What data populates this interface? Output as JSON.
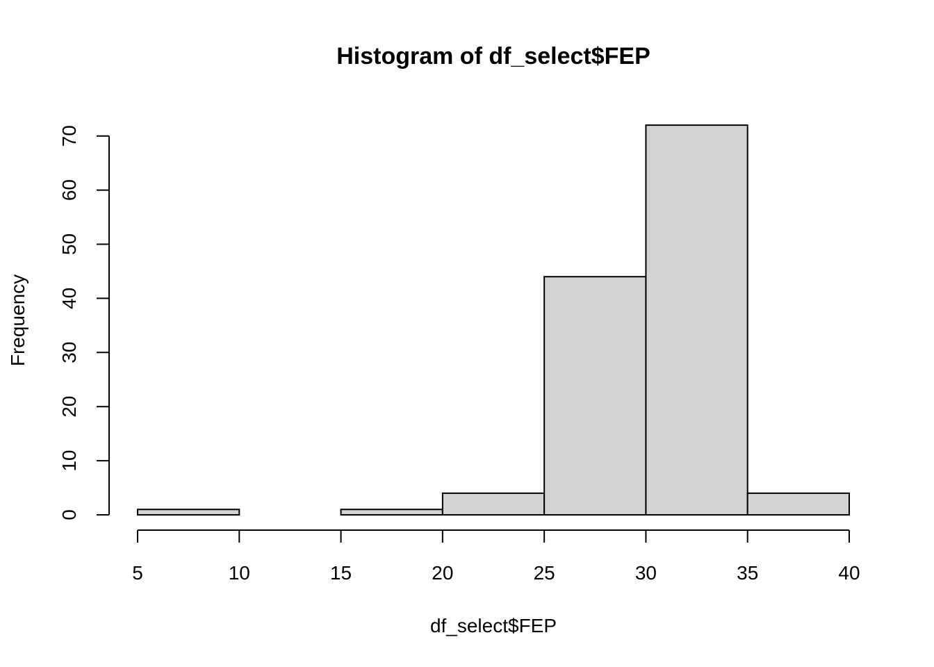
{
  "chart_data": {
    "type": "bar",
    "subtype": "histogram",
    "title": "Histogram of df_select$FEP",
    "xlabel": "df_select$FEP",
    "ylabel": "Frequency",
    "bins": [
      {
        "from": 5,
        "to": 10,
        "count": 1
      },
      {
        "from": 10,
        "to": 15,
        "count": 0
      },
      {
        "from": 15,
        "to": 20,
        "count": 1
      },
      {
        "from": 20,
        "to": 25,
        "count": 4
      },
      {
        "from": 25,
        "to": 30,
        "count": 44
      },
      {
        "from": 30,
        "to": 35,
        "count": 72
      },
      {
        "from": 35,
        "to": 40,
        "count": 4
      }
    ],
    "xlim": [
      5,
      40
    ],
    "ylim": [
      0,
      72
    ],
    "x_ticks": [
      5,
      10,
      15,
      20,
      25,
      30,
      35,
      40
    ],
    "y_ticks": [
      0,
      10,
      20,
      30,
      40,
      50,
      60,
      70
    ],
    "bar_color": "#d3d3d3",
    "grid": false,
    "legend": false
  }
}
